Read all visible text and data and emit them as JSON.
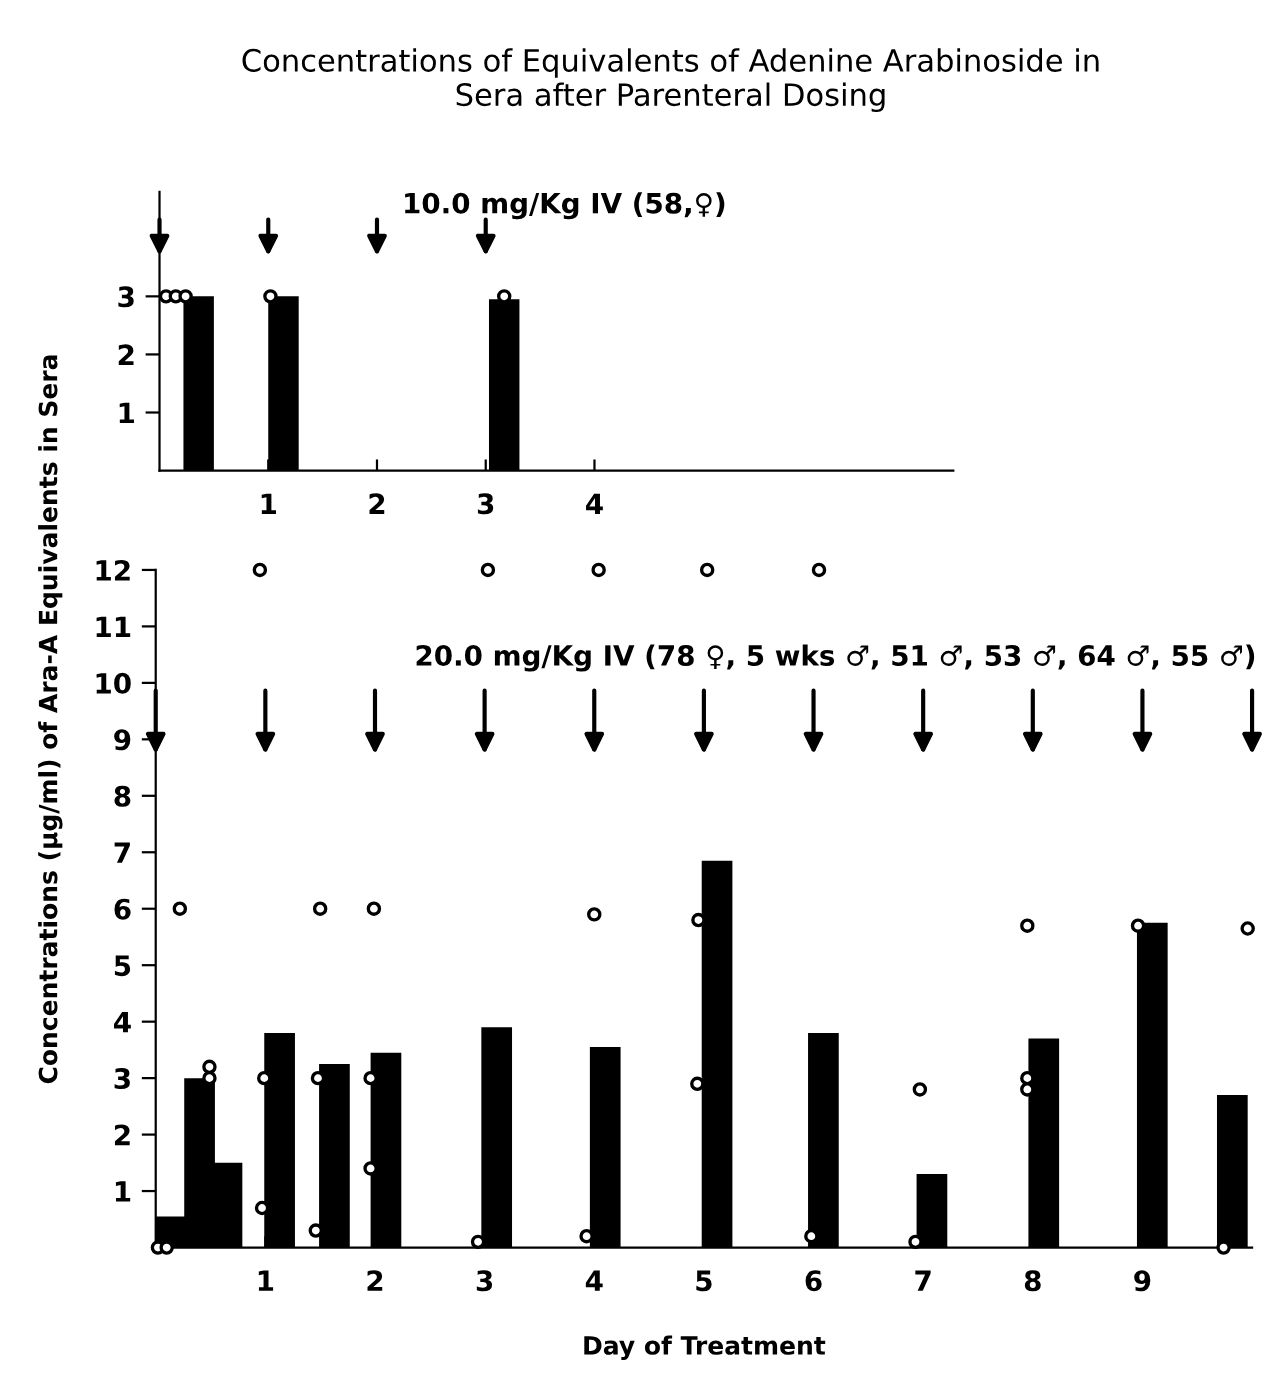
{
  "chart_data": [
    {
      "type": "bar",
      "title": "Concentrations of Equivalents of Adenine Arabinoside in\nSera after Parenteral Dosing",
      "xlim": [
        0,
        7.3
      ],
      "ylim": [
        0,
        4.8
      ],
      "xticks": [
        1,
        2,
        3,
        4
      ],
      "yticks": [
        1,
        2,
        3
      ],
      "grid": false,
      "marker": "circle",
      "series": [
        {
          "color": "#000000",
          "x": [
            0.36,
            1.14,
            3.17
          ],
          "values": [
            3.0,
            3.0,
            2.95
          ]
        },
        {
          "type": "scatter",
          "color": "#000000",
          "x": [
            0.06,
            0.15,
            0.24,
            1.02,
            3.17
          ],
          "values": [
            3.0,
            3.0,
            3.0,
            3.0,
            3.0
          ]
        }
      ],
      "annotations": [
        "10.0 mg/Kg IV (58,♀)"
      ]
    },
    {
      "type": "bar",
      "xlabel": "Day of Treatment",
      "ylabel": "Concentrations (µg/ml) of Ara-A Equivalents in Sera",
      "xlim": [
        0,
        10
      ],
      "ylim": [
        0,
        12
      ],
      "xticks": [
        1,
        2,
        3,
        4,
        5,
        6,
        7,
        8,
        9
      ],
      "yticks": [
        1,
        2,
        3,
        4,
        5,
        6,
        7,
        8,
        9,
        10,
        11,
        12
      ],
      "grid": false,
      "marker": "circle",
      "series": [
        {
          "color": "#000000",
          "x": [
            0.13,
            0.4,
            0.65,
            1.13,
            1.63,
            2.1,
            3.11,
            4.1,
            5.12,
            6.09,
            7.08,
            8.1,
            9.09,
            9.82
          ],
          "values": [
            0.55,
            3.0,
            1.5,
            3.8,
            3.25,
            3.45,
            3.9,
            3.55,
            6.85,
            3.8,
            1.3,
            3.7,
            5.75,
            2.7
          ]
        },
        {
          "type": "scatter",
          "color": "#000000",
          "x": [
            0.02,
            0.1,
            0.22,
            0.49,
            0.49,
            0.95,
            0.99,
            0.97,
            1.5,
            1.48,
            1.46,
            1.99,
            1.96,
            1.96,
            3.03,
            2.94,
            4.04,
            4.0,
            3.93,
            5.03,
            4.95,
            4.94,
            6.05,
            5.98,
            6.97,
            6.93,
            7.95,
            7.95,
            7.95,
            8.96,
            9.96,
            9.74
          ],
          "values": [
            0,
            0,
            6.0,
            3.2,
            3.0,
            12,
            3.0,
            0.7,
            6.0,
            3.0,
            0.3,
            6.0,
            3.0,
            1.4,
            12,
            0.1,
            12,
            5.9,
            0.2,
            12,
            5.8,
            2.9,
            12,
            0.2,
            2.8,
            0.1,
            5.7,
            3.0,
            2.8,
            5.7,
            5.65,
            0
          ]
        }
      ],
      "annotations": [
        "20.0 mg/Kg IV (78 ♀, 5 wks ♂, 51 ♂, 53 ♂, 64 ♂, 55 ♂)"
      ]
    }
  ]
}
